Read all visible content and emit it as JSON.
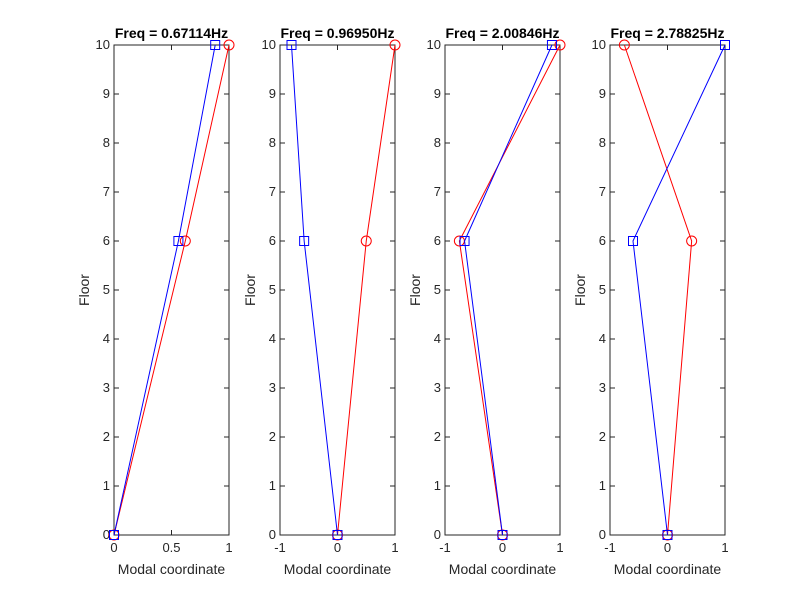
{
  "chart_data": [
    {
      "type": "line",
      "title": "Freq = 0.67114Hz",
      "xlabel": "Modal coordinate",
      "ylabel": "Floor",
      "xlim": [
        0,
        1
      ],
      "ylim": [
        0,
        10
      ],
      "xticks": [
        "0",
        "0.5",
        "1"
      ],
      "yticks": [
        "0",
        "1",
        "2",
        "3",
        "4",
        "5",
        "6",
        "7",
        "8",
        "9",
        "10"
      ],
      "series": [
        {
          "color": "#ff0000",
          "marker": "circle",
          "points": [
            [
              0,
              0
            ],
            [
              0.62,
              6
            ],
            [
              1,
              10
            ]
          ]
        },
        {
          "color": "#0000ff",
          "marker": "square",
          "points": [
            [
              0,
              0
            ],
            [
              0.56,
              6
            ],
            [
              0.88,
              10
            ]
          ]
        }
      ]
    },
    {
      "type": "line",
      "title": "Freq = 0.96950Hz",
      "xlabel": "Modal coordinate",
      "ylabel": "Floor",
      "xlim": [
        -1,
        1
      ],
      "ylim": [
        0,
        10
      ],
      "xticks": [
        "-1",
        "0",
        "1"
      ],
      "yticks": [
        "0",
        "1",
        "2",
        "3",
        "4",
        "5",
        "6",
        "7",
        "8",
        "9",
        "10"
      ],
      "series": [
        {
          "color": "#ff0000",
          "marker": "circle",
          "points": [
            [
              0,
              0
            ],
            [
              0.5,
              6
            ],
            [
              1,
              10
            ]
          ]
        },
        {
          "color": "#0000ff",
          "marker": "square",
          "points": [
            [
              0,
              0
            ],
            [
              -0.58,
              6
            ],
            [
              -0.8,
              10
            ]
          ]
        }
      ]
    },
    {
      "type": "line",
      "title": "Freq = 2.00846Hz",
      "xlabel": "Modal coordinate",
      "ylabel": "Floor",
      "xlim": [
        -1,
        1
      ],
      "ylim": [
        0,
        10
      ],
      "xticks": [
        "-1",
        "0",
        "1"
      ],
      "yticks": [
        "0",
        "1",
        "2",
        "3",
        "4",
        "5",
        "6",
        "7",
        "8",
        "9",
        "10"
      ],
      "series": [
        {
          "color": "#ff0000",
          "marker": "circle",
          "points": [
            [
              0,
              0
            ],
            [
              -0.75,
              6
            ],
            [
              1,
              10
            ]
          ]
        },
        {
          "color": "#0000ff",
          "marker": "square",
          "points": [
            [
              0,
              0
            ],
            [
              -0.66,
              6
            ],
            [
              0.86,
              10
            ]
          ]
        }
      ]
    },
    {
      "type": "line",
      "title": "Freq = 2.78825Hz",
      "xlabel": "Modal coordinate",
      "ylabel": "Floor",
      "xlim": [
        -1,
        1
      ],
      "ylim": [
        0,
        10
      ],
      "xticks": [
        "-1",
        "0",
        "1"
      ],
      "yticks": [
        "0",
        "1",
        "2",
        "3",
        "4",
        "5",
        "6",
        "7",
        "8",
        "9",
        "10"
      ],
      "series": [
        {
          "color": "#ff0000",
          "marker": "circle",
          "points": [
            [
              0,
              0
            ],
            [
              0.42,
              6
            ],
            [
              -0.75,
              10
            ]
          ]
        },
        {
          "color": "#0000ff",
          "marker": "square",
          "points": [
            [
              0,
              0
            ],
            [
              -0.6,
              6
            ],
            [
              1,
              10
            ]
          ]
        }
      ]
    }
  ]
}
